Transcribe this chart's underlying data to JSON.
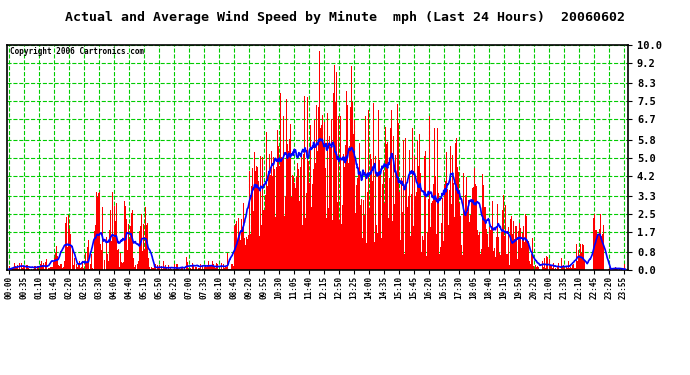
{
  "title": "Actual and Average Wind Speed by Minute  mph (Last 24 Hours)  20060602",
  "copyright": "Copyright 2006 Cartronics.com",
  "yticks": [
    0.0,
    0.8,
    1.7,
    2.5,
    3.3,
    4.2,
    5.0,
    5.8,
    6.7,
    7.5,
    8.3,
    9.2,
    10.0
  ],
  "ymax": 10.0,
  "ymin": 0.0,
  "plot_bg": "#ffffff",
  "fig_bg": "#ffffff",
  "bar_color": "#ff0000",
  "line_color": "#0000ff",
  "grid_color": "#00cc00",
  "title_color": "#000000",
  "copyright_color": "#000000",
  "tick_interval_min": 35,
  "num_minutes": 1440
}
